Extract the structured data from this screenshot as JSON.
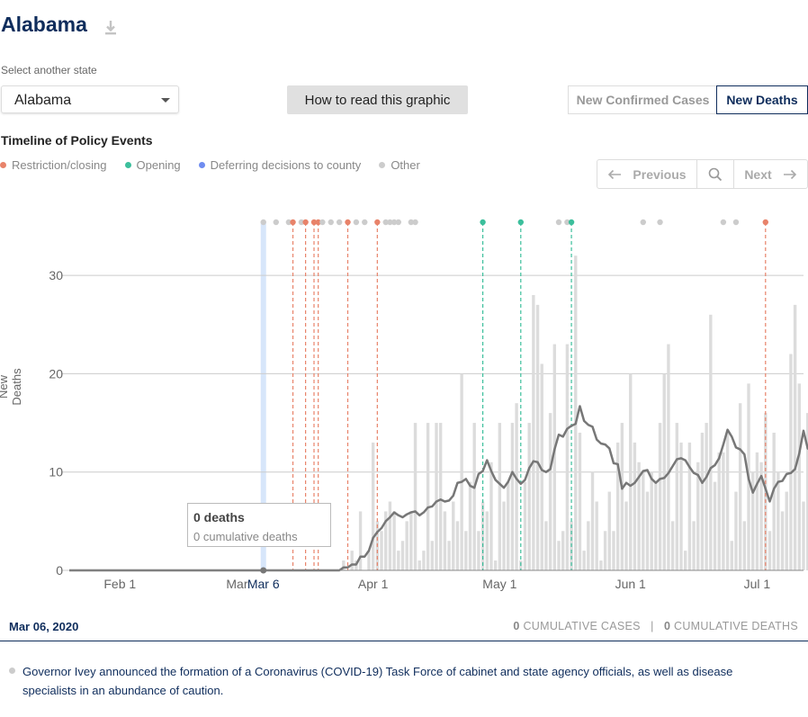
{
  "header": {
    "title": "Alabama",
    "download_icon": "download-icon"
  },
  "state_selector": {
    "label": "Select another state",
    "value": "Alabama"
  },
  "howto_button": "How to read this graphic",
  "toggle": {
    "cases": "New Confirmed Cases",
    "deaths": "New Deaths",
    "active": "deaths"
  },
  "timeline": {
    "title": "Timeline of Policy Events",
    "legend": [
      {
        "label": "Restriction/closing",
        "color": "#e8836a"
      },
      {
        "label": "Opening",
        "color": "#3cbf9c"
      },
      {
        "label": "Deferring decisions to county",
        "color": "#6f8cf0"
      },
      {
        "label": "Other",
        "color": "#cccccc"
      }
    ],
    "nav": {
      "previous": "Previous",
      "next": "Next"
    }
  },
  "colors": {
    "bar": "#dcdcdc",
    "avg_line": "#777777",
    "grid": "#cccccc",
    "highlight": "#bcd6f7",
    "navy": "#0f2d5c"
  },
  "selected": {
    "date": "Mar 06, 2020",
    "axis_label": "Mar 6",
    "tooltip_main": "0 deaths",
    "tooltip_sub": "0 cumulative deaths",
    "cum_cases_num": "0",
    "cum_cases_label": "CUMULATIVE CASES",
    "cum_deaths_num": "0",
    "cum_deaths_label": "CUMULATIVE DEATHS",
    "event_text": "Governor Ivey announced the formation of a Coronavirus (COVID-19) Task Force of cabinet and state agency officials, as well as disease specialists in an abundance of caution."
  },
  "chart_data": {
    "type": "bar",
    "ylabel": "New Deaths",
    "ylim": [
      0,
      35
    ],
    "yticks": [
      0,
      10,
      20,
      30
    ],
    "xticks": [
      {
        "label": "Feb 1",
        "date": "2020-02-01"
      },
      {
        "label": "Mar 1",
        "date": "2020-03-01"
      },
      {
        "label": "Apr 1",
        "date": "2020-04-01"
      },
      {
        "label": "May 1",
        "date": "2020-05-01"
      },
      {
        "label": "Jun 1",
        "date": "2020-06-01"
      },
      {
        "label": "Jul 1",
        "date": "2020-07-01"
      }
    ],
    "dates": {
      "start": "2020-03-25",
      "end": "2020-07-12"
    },
    "series": [
      {
        "values": [
          1,
          0,
          2,
          1,
          6,
          0,
          2,
          13,
          5,
          4,
          6,
          7,
          6,
          2,
          3,
          5,
          6,
          15,
          1,
          2,
          15,
          3,
          15,
          15,
          6,
          3,
          7,
          5,
          20,
          4,
          9,
          15,
          4,
          7,
          6,
          11,
          1,
          15,
          7,
          9,
          15,
          17,
          1,
          9,
          15,
          28,
          27,
          21,
          5,
          16,
          23,
          3,
          4,
          23,
          5,
          32,
          14,
          2,
          5,
          10,
          7,
          1,
          4,
          8,
          4,
          13,
          15,
          7,
          20,
          13,
          11,
          10,
          8,
          10,
          9,
          15,
          20,
          23,
          5,
          15,
          13,
          2,
          13,
          5,
          11,
          14,
          15,
          26,
          9,
          12,
          12,
          14,
          3,
          8,
          17,
          5,
          19,
          10,
          12,
          11,
          16,
          4,
          14,
          10,
          6,
          8,
          22,
          27,
          19,
          7,
          16,
          14,
          24,
          21,
          10,
          14,
          22,
          10,
          16,
          1,
          26,
          25,
          10
        ]
      },
      {
        "values": [
          0.3,
          0.3,
          0.6,
          0.6,
          1.4,
          1.4,
          2.0,
          3.3,
          3.9,
          4.3,
          5.0,
          5.4,
          5.9,
          5.6,
          5.4,
          5.7,
          5.9,
          6.0,
          5.6,
          5.9,
          6.4,
          6.5,
          7.0,
          7.2,
          7.0,
          7.1,
          7.6,
          8.9,
          9.0,
          9.3,
          8.6,
          8.4,
          9.8,
          10.1,
          11.2,
          10.1,
          9.2,
          8.8,
          8.4,
          9.0,
          10.0,
          9.3,
          8.8,
          9.2,
          10.4,
          11.1,
          11.0,
          10.2,
          10.0,
          10.3,
          12.3,
          13.8,
          13.6,
          14.4,
          14.7,
          14.9,
          16.7,
          15.2,
          14.8,
          14.6,
          13.3,
          12.9,
          12.8,
          12.4,
          10.9,
          10.8,
          8.3,
          8.9,
          8.6,
          8.9,
          9.5,
          10.1,
          10.2,
          9.3,
          8.9,
          9.3,
          9.4,
          9.9,
          10.6,
          11.3,
          11.4,
          11.2,
          10.5,
          9.9,
          9.7,
          8.9,
          9.5,
          10.4,
          10.7,
          11.4,
          12.8,
          14.3,
          13.6,
          12.5,
          12.3,
          11.8,
          9.3,
          7.9,
          8.8,
          9.6,
          8.3,
          7.0,
          8.3,
          9.0,
          9.1,
          9.8,
          9.9,
          10.3,
          11.9,
          14.2,
          12.4,
          12.1,
          11.7,
          11.5,
          12.2,
          12.0,
          11.7,
          12.3,
          13.7,
          12.6,
          12.4,
          11.2,
          11.8,
          12.1,
          11.9
        ]
      }
    ],
    "line_before": {
      "from": "2020-01-20",
      "to": "2020-03-24",
      "value": 0
    },
    "selected_date": "2020-03-06",
    "events": [
      {
        "date": "2020-03-06",
        "type": "other"
      },
      {
        "date": "2020-03-09",
        "type": "other"
      },
      {
        "date": "2020-03-12",
        "type": "other"
      },
      {
        "date": "2020-03-13",
        "type": "restriction",
        "line": true
      },
      {
        "date": "2020-03-15",
        "type": "other"
      },
      {
        "date": "2020-03-16",
        "type": "restriction",
        "line": true
      },
      {
        "date": "2020-03-18",
        "type": "restriction",
        "line": true
      },
      {
        "date": "2020-03-19",
        "type": "restriction",
        "line": true
      },
      {
        "date": "2020-03-20",
        "type": "other"
      },
      {
        "date": "2020-03-22",
        "type": "other"
      },
      {
        "date": "2020-03-24",
        "type": "other"
      },
      {
        "date": "2020-03-26",
        "type": "restriction",
        "line": true
      },
      {
        "date": "2020-03-28",
        "type": "other"
      },
      {
        "date": "2020-03-30",
        "type": "other"
      },
      {
        "date": "2020-04-02",
        "type": "restriction",
        "line": true
      },
      {
        "date": "2020-04-04",
        "type": "other"
      },
      {
        "date": "2020-04-05",
        "type": "other"
      },
      {
        "date": "2020-04-06",
        "type": "other"
      },
      {
        "date": "2020-04-07",
        "type": "other"
      },
      {
        "date": "2020-04-10",
        "type": "other"
      },
      {
        "date": "2020-04-11",
        "type": "other"
      },
      {
        "date": "2020-04-27",
        "type": "opening",
        "line": true
      },
      {
        "date": "2020-05-06",
        "type": "opening",
        "line": true
      },
      {
        "date": "2020-05-15",
        "type": "other"
      },
      {
        "date": "2020-05-17",
        "type": "other"
      },
      {
        "date": "2020-05-18",
        "type": "opening",
        "line": true
      },
      {
        "date": "2020-06-04",
        "type": "other"
      },
      {
        "date": "2020-06-08",
        "type": "other"
      },
      {
        "date": "2020-06-23",
        "type": "other"
      },
      {
        "date": "2020-06-26",
        "type": "other"
      },
      {
        "date": "2020-07-03",
        "type": "restriction",
        "line": true
      }
    ]
  }
}
